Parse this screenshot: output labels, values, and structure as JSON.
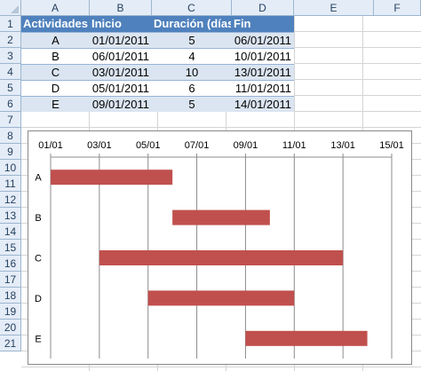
{
  "sheet": {
    "columns": [
      "A",
      "B",
      "C",
      "D",
      "E",
      "F"
    ],
    "rows": [
      "1",
      "2",
      "3",
      "4",
      "5",
      "6",
      "7",
      "8",
      "9",
      "10",
      "11",
      "12",
      "13",
      "14",
      "15",
      "16",
      "17",
      "18",
      "19",
      "20",
      "21"
    ]
  },
  "table": {
    "headers": [
      "Actividades",
      "Inicio",
      "Duración (días)",
      "Fin"
    ],
    "rows": [
      {
        "actividad": "A",
        "inicio": "01/01/2011",
        "duracion": "5",
        "fin": "06/01/2011"
      },
      {
        "actividad": "B",
        "inicio": "06/01/2011",
        "duracion": "4",
        "fin": "10/01/2011"
      },
      {
        "actividad": "C",
        "inicio": "03/01/2011",
        "duracion": "10",
        "fin": "13/01/2011"
      },
      {
        "actividad": "D",
        "inicio": "05/01/2011",
        "duracion": "6",
        "fin": "11/01/2011"
      },
      {
        "actividad": "E",
        "inicio": "09/01/2011",
        "duracion": "5",
        "fin": "14/01/2011"
      }
    ]
  },
  "colors": {
    "header_fill": "#4f81bd",
    "band_fill": "#dbe5f1",
    "bar_fill": "#c0504d"
  },
  "chart_data": {
    "type": "bar",
    "orientation": "horizontal",
    "categories": [
      "A",
      "B",
      "C",
      "D",
      "E"
    ],
    "start": [
      "2011-01-01",
      "2011-01-06",
      "2011-01-03",
      "2011-01-05",
      "2011-01-09"
    ],
    "end": [
      "2011-01-06",
      "2011-01-10",
      "2011-01-13",
      "2011-01-11",
      "2011-01-14"
    ],
    "duration_days": [
      5,
      4,
      10,
      6,
      5
    ],
    "x_tick_labels": [
      "01/01",
      "03/01",
      "05/01",
      "07/01",
      "09/01",
      "11/01",
      "13/01",
      "15/01"
    ],
    "xlim": [
      "2011-01-01",
      "2011-01-15"
    ],
    "x_axis_position": "top",
    "grid": true,
    "legend": "none",
    "title": "",
    "xlabel": "",
    "ylabel": ""
  }
}
